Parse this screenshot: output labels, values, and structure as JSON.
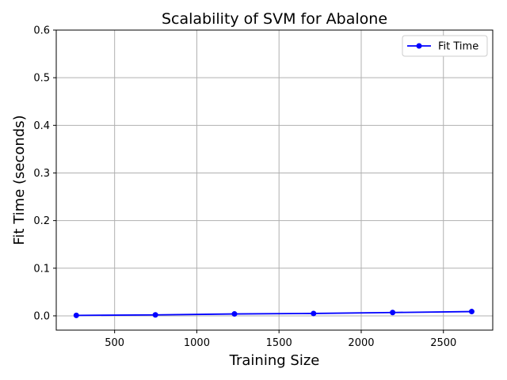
{
  "chart_data": {
    "type": "line",
    "title": "Scalability of SVM for Abalone",
    "xlabel": "Training Size",
    "ylabel": "Fit Time (seconds)",
    "xlim": [
      145,
      2800
    ],
    "ylim": [
      -0.03,
      0.6
    ],
    "xticks": [
      500,
      1000,
      1500,
      2000,
      2500
    ],
    "yticks": [
      0.0,
      0.1,
      0.2,
      0.3,
      0.4,
      0.5,
      0.6
    ],
    "xtick_labels": [
      "500",
      "1000",
      "1500",
      "2000",
      "2500"
    ],
    "ytick_labels": [
      "0.0",
      "0.1",
      "0.2",
      "0.3",
      "0.4",
      "0.5",
      "0.6"
    ],
    "grid": true,
    "legend_position": "top-right",
    "series": [
      {
        "name": "Fit Time",
        "color": "#0000ff",
        "marker": "circle",
        "x": [
          267,
          748,
          1229,
          1710,
          2191,
          2672
        ],
        "y": [
          0.001,
          0.002,
          0.004,
          0.005,
          0.007,
          0.009
        ]
      }
    ]
  }
}
